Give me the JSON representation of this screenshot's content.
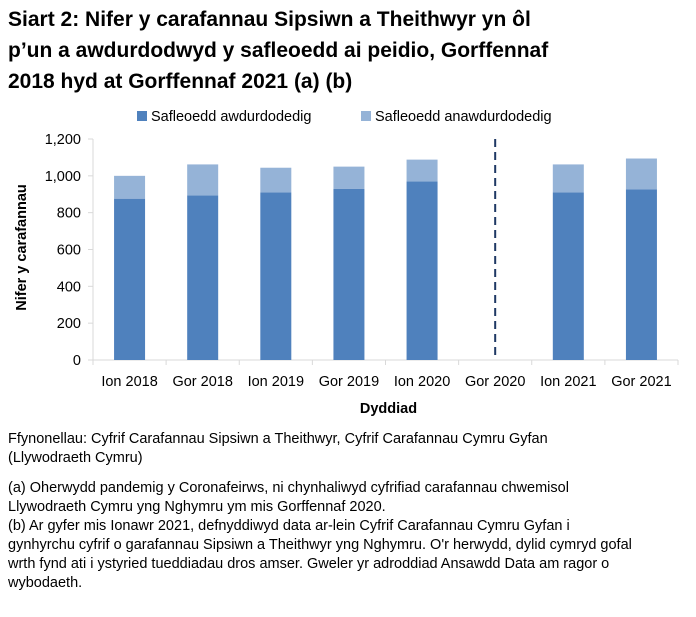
{
  "title_lines": [
    "Siart 2: Nifer y carafannau Sipsiwn a Theithwyr yn ôl",
    "p’un a awdurdodwyd y safleoedd ai peidio, Gorffennaf",
    "2018 hyd at Gorffennaf 2021 (a) (b)"
  ],
  "chart_data": {
    "type": "bar",
    "stacked": true,
    "title": "Siart 2: Nifer y carafannau Sipsiwn a Theithwyr yn ôl p’un a awdurdodwyd y safleoedd ai peidio, Gorffennaf 2018 hyd at Gorffennaf 2021 (a) (b)",
    "categories": [
      "Ion 2018",
      "Gor 2018",
      "Ion 2019",
      "Gor 2019",
      "Ion 2020",
      "Gor 2020",
      "Ion 2021",
      "Gor 2021"
    ],
    "series": [
      {
        "name": "Safleoedd awdurdodedig",
        "color": "#4f81bd",
        "values": [
          876,
          894,
          910,
          930,
          970,
          null,
          910,
          926
        ]
      },
      {
        "name": "Safleoedd anawdurdodedig",
        "color": "#95b3d7",
        "values": [
          124,
          168,
          134,
          120,
          118,
          null,
          152,
          168
        ]
      }
    ],
    "xlabel": "Dyddiad",
    "ylabel": "Nifer y carafannau",
    "ylim": [
      0,
      1200
    ],
    "yticks": [
      0,
      200,
      400,
      600,
      800,
      1000,
      1200
    ],
    "ytick_labels": [
      "0",
      "200",
      "400",
      "600",
      "800",
      "1,000",
      "1,200"
    ],
    "legend_position": "top",
    "annotations": [
      {
        "type": "dashed-vertical-line",
        "at_category": "Gor 2020",
        "color": "#1f3864"
      }
    ],
    "axis_color": "#d9d9d9"
  },
  "notes": {
    "source_lines": [
      "Ffynonellau: Cyfrif Carafannau Sipsiwn a Theithwyr, Cyfrif Carafannau Cymru Gyfan",
      "(Llywodraeth Cymru)"
    ],
    "note_a_lines": [
      "(a) Oherwydd pandemig y Coronafeirws, ni chynhaliwyd cyfrifiad carafannau chwemisol",
      "Llywodraeth Cymru yng Nghymru ym mis Gorffennaf 2020."
    ],
    "note_b_lines": [
      "(b) Ar gyfer mis Ionawr 2021, defnyddiwyd data ar-lein Cyfrif Carafannau Cymru Gyfan i",
      "gynhyrchu cyfrif o garafannau Sipsiwn a Theithwyr yng Nghymru. O'r herwydd, dylid cymryd gofal",
      "wrth fynd ati i ystyried tueddiadau dros amser. Gweler yr adroddiad Ansawdd Data am ragor o",
      "wybodaeth."
    ]
  }
}
